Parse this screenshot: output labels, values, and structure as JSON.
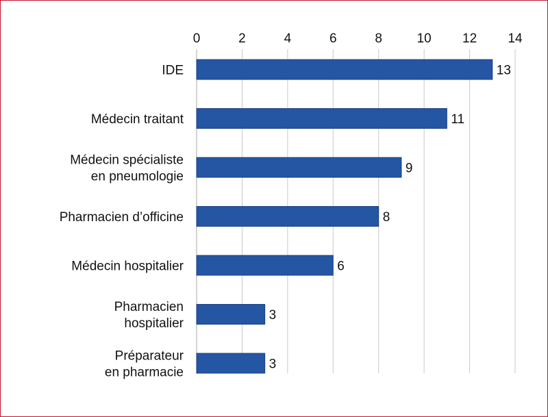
{
  "chart_data": {
    "type": "bar",
    "orientation": "horizontal",
    "title": "",
    "xlabel": "",
    "ylabel": "",
    "xlim": [
      0,
      14
    ],
    "ticks": [
      0,
      2,
      4,
      6,
      8,
      10,
      12,
      14
    ],
    "axis_position": "top",
    "grid": true,
    "categories": [
      [
        "IDE"
      ],
      [
        "Médecin traitant"
      ],
      [
        "Médecin spécialiste",
        "en pneumologie"
      ],
      [
        "Pharmacien d’officine"
      ],
      [
        "Médecin hospitalier"
      ],
      [
        "Pharmacien",
        "hospitalier"
      ],
      [
        "Préparateur",
        "en pharmacie"
      ]
    ],
    "values": [
      13,
      11,
      9,
      8,
      6,
      3,
      3
    ],
    "colors": {
      "bar": "#2456a4",
      "bar_edge": "#1a3f80",
      "grid": "#c8c8c8",
      "border": "#c8102e"
    }
  }
}
